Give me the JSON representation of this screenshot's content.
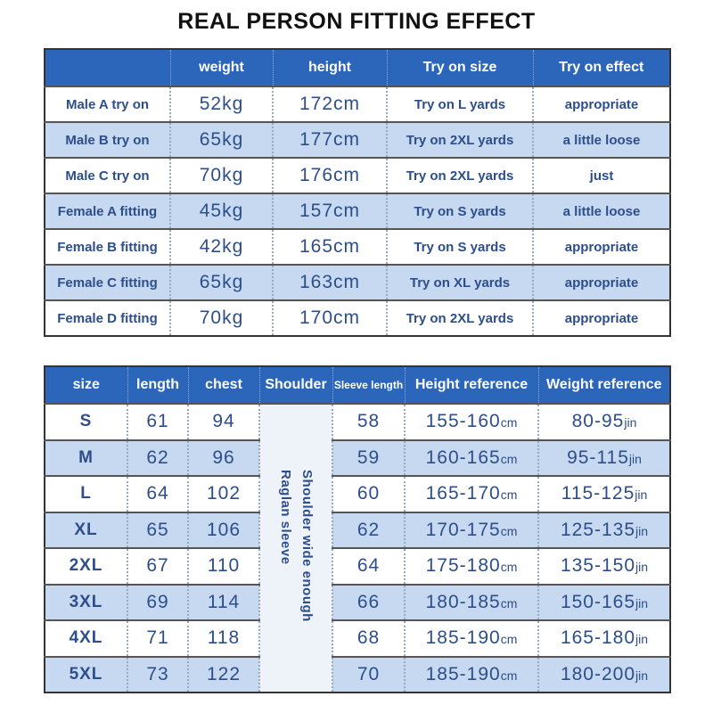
{
  "title": "REAL PERSON FITTING EFFECT",
  "fitting_table": {
    "headers": [
      "",
      "weight",
      "height",
      "Try on size",
      "Try on effect"
    ],
    "rows": [
      [
        "Male A try on",
        "52kg",
        "172cm",
        "Try on L yards",
        "appropriate"
      ],
      [
        "Male B try on",
        "65kg",
        "177cm",
        "Try on 2XL yards",
        "a little loose"
      ],
      [
        "Male C try on",
        "70kg",
        "176cm",
        "Try on 2XL yards",
        "just"
      ],
      [
        "Female A fitting",
        "45kg",
        "157cm",
        "Try on S yards",
        "a little loose"
      ],
      [
        "Female B fitting",
        "42kg",
        "165cm",
        "Try on S yards",
        "appropriate"
      ],
      [
        "Female C fitting",
        "65kg",
        "163cm",
        "Try on XL yards",
        "appropriate"
      ],
      [
        "Female D fitting",
        "70kg",
        "170cm",
        "Try on 2XL yards",
        "appropriate"
      ]
    ]
  },
  "size_table": {
    "headers": [
      "size",
      "length",
      "chest",
      "Shoulder",
      "Sleeve length",
      "Height reference",
      "Weight reference"
    ],
    "shoulder_note_line1": "Shoulder wide enough",
    "shoulder_note_line2": "Raglan sleeve",
    "height_unit": "cm",
    "weight_unit": "jin",
    "rows": [
      [
        "S",
        "61",
        "94",
        "58",
        "155-160",
        "80-95"
      ],
      [
        "M",
        "62",
        "96",
        "59",
        "160-165",
        "95-115"
      ],
      [
        "L",
        "64",
        "102",
        "60",
        "165-170",
        "115-125"
      ],
      [
        "XL",
        "65",
        "106",
        "62",
        "170-175",
        "125-135"
      ],
      [
        "2XL",
        "67",
        "110",
        "64",
        "175-180",
        "135-150"
      ],
      [
        "3XL",
        "69",
        "114",
        "66",
        "180-185",
        "150-165"
      ],
      [
        "4XL",
        "71",
        "118",
        "68",
        "185-190",
        "165-180"
      ],
      [
        "5XL",
        "73",
        "122",
        "70",
        "185-190",
        "180-200"
      ]
    ]
  }
}
